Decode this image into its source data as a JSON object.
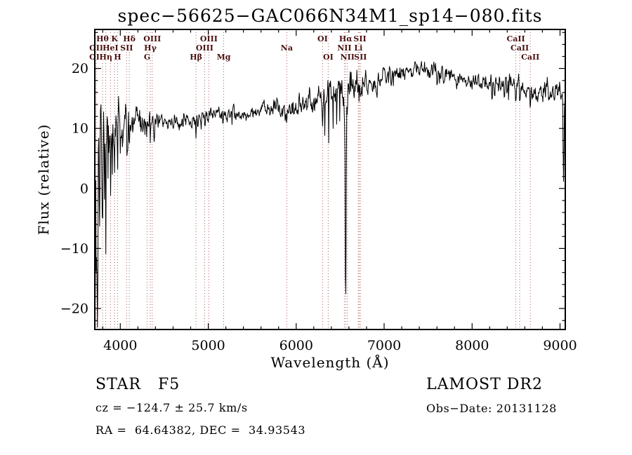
{
  "window": {
    "background": "#ffffff"
  },
  "chart_data": {
    "type": "line",
    "title": "spec−56625−GAC066N34M1_sp14−080.fits",
    "xlabel": "Wavelength (Å)",
    "ylabel": "Flux (relative)",
    "xlim": [
      3710,
      9060
    ],
    "ylim": [
      -23.5,
      26.5
    ],
    "xticks": [
      4000,
      5000,
      6000,
      7000,
      8000,
      9000
    ],
    "x_minor_step": 200,
    "yticks": [
      -20,
      -10,
      0,
      10,
      20
    ],
    "y_minor_step": 2,
    "grid": false,
    "legend": null,
    "colors": {
      "spectrum": "#000000",
      "axis": "#000000",
      "line_marker": "#8b1a1a",
      "line_label": "#4a0f0f"
    },
    "sample_step_angstrom": 5,
    "noise_seed": 20131128,
    "continuum": [
      [
        3710,
        0
      ],
      [
        3750,
        4
      ],
      [
        3790,
        7
      ],
      [
        3830,
        9
      ],
      [
        3870,
        10
      ],
      [
        3920,
        10.6
      ],
      [
        3980,
        11
      ],
      [
        4060,
        11.5
      ],
      [
        4160,
        11.9
      ],
      [
        4300,
        11.6
      ],
      [
        4450,
        11.2
      ],
      [
        4600,
        11.1
      ],
      [
        4750,
        11.3
      ],
      [
        4900,
        11.7
      ],
      [
        5050,
        12.1
      ],
      [
        5200,
        12.3
      ],
      [
        5350,
        12.4
      ],
      [
        5500,
        12.7
      ],
      [
        5620,
        13.3
      ],
      [
        5750,
        13.6
      ],
      [
        5870,
        12.7
      ],
      [
        5950,
        13.0
      ],
      [
        6060,
        13.6
      ],
      [
        6170,
        14.5
      ],
      [
        6280,
        15.3
      ],
      [
        6400,
        15.9
      ],
      [
        6520,
        16.5
      ],
      [
        6640,
        16.9
      ],
      [
        6780,
        17.3
      ],
      [
        6920,
        17.9
      ],
      [
        7060,
        18.8
      ],
      [
        7200,
        19.4
      ],
      [
        7350,
        19.7
      ],
      [
        7500,
        19.5
      ],
      [
        7650,
        19.0
      ],
      [
        7800,
        18.5
      ],
      [
        7950,
        18.1
      ],
      [
        8100,
        17.7
      ],
      [
        8250,
        17.3
      ],
      [
        8400,
        17.0
      ],
      [
        8550,
        16.6
      ],
      [
        8700,
        16.3
      ],
      [
        8850,
        16.3
      ],
      [
        9000,
        16.3
      ],
      [
        9060,
        15.5
      ]
    ],
    "noise_segments": [
      [
        3710,
        3800,
        6.5
      ],
      [
        3800,
        3880,
        4.5
      ],
      [
        3880,
        3980,
        2.8
      ],
      [
        3980,
        4150,
        1.8
      ],
      [
        4150,
        4450,
        1.2
      ],
      [
        4450,
        5750,
        0.62
      ],
      [
        5750,
        6280,
        0.95
      ],
      [
        6280,
        6780,
        1.3
      ],
      [
        6780,
        7150,
        1.05
      ],
      [
        7150,
        8350,
        0.8
      ],
      [
        8350,
        9061,
        0.95
      ]
    ],
    "absorption_features": [
      [
        3714,
        18,
        8
      ],
      [
        3727,
        10,
        6
      ],
      [
        3740,
        20,
        8
      ],
      [
        3762,
        14,
        7
      ],
      [
        3798,
        16,
        8
      ],
      [
        3820,
        10,
        6
      ],
      [
        3835,
        14,
        7
      ],
      [
        3860,
        8,
        6
      ],
      [
        3889,
        11,
        7
      ],
      [
        3910,
        6,
        5
      ],
      [
        3934,
        7.5,
        7
      ],
      [
        3969,
        6.5,
        7
      ],
      [
        4000,
        4,
        5
      ],
      [
        4026,
        3,
        5
      ],
      [
        4077,
        5,
        6
      ],
      [
        4102,
        5.5,
        7
      ],
      [
        4144,
        3,
        5
      ],
      [
        4226,
        2.5,
        5
      ],
      [
        4300,
        2,
        7
      ],
      [
        4341,
        3.5,
        7
      ],
      [
        4383,
        2.5,
        5
      ],
      [
        4430,
        2.5,
        5
      ],
      [
        4861,
        2.8,
        7
      ],
      [
        4920,
        2,
        5
      ],
      [
        5167,
        1.6,
        7
      ],
      [
        5270,
        1.2,
        5
      ],
      [
        5893,
        3.4,
        12
      ],
      [
        6122,
        1.5,
        5
      ],
      [
        6300,
        2,
        5
      ],
      [
        6325,
        6,
        5
      ],
      [
        6371,
        9,
        5
      ],
      [
        6420,
        5,
        4
      ],
      [
        6462,
        8,
        4
      ],
      [
        6495,
        6,
        4
      ],
      [
        6548,
        4,
        5
      ],
      [
        6563,
        36,
        12
      ],
      [
        6583,
        4.5,
        5
      ],
      [
        6707,
        2,
        4
      ],
      [
        6716,
        3,
        4
      ],
      [
        6731,
        3,
        4
      ],
      [
        6867,
        3,
        9
      ],
      [
        7186,
        1.8,
        8
      ],
      [
        7605,
        2.2,
        10
      ],
      [
        8227,
        2,
        5
      ],
      [
        8498,
        3.2,
        7
      ],
      [
        8542,
        3.8,
        7
      ],
      [
        8662,
        3.2,
        7
      ],
      [
        8805,
        2,
        5
      ],
      [
        9040,
        16,
        12
      ]
    ],
    "emission_features": [
      [
        4471,
        1.5,
        3
      ],
      [
        6690,
        3.2,
        4
      ],
      [
        7460,
        1.8,
        3
      ],
      [
        8408,
        6.5,
        4
      ]
    ],
    "spectral_line_markers": [
      3727,
      3798,
      3835,
      3889,
      3934,
      3969,
      4072,
      4102,
      4306,
      4341,
      4363,
      4861,
      4959,
      5007,
      5175,
      5893,
      6300,
      6364,
      6548,
      6563,
      6583,
      6707,
      6716,
      6731,
      8498,
      8542,
      8662
    ],
    "line_label_rows": [
      [
        {
          "text": "Hθ",
          "wl": 3798
        },
        {
          "text": "K",
          "wl": 3934
        },
        {
          "text": "Hδ",
          "wl": 4102
        },
        {
          "text": "OIII",
          "wl": 4363
        },
        {
          "text": "OIII",
          "wl": 5007
        },
        {
          "text": "OI",
          "wl": 6300
        },
        {
          "text": "Hα",
          "wl": 6563
        },
        {
          "text": "SII",
          "wl": 6724
        },
        {
          "text": "CaII",
          "wl": 8498
        }
      ],
      [
        {
          "text": "OII",
          "wl": 3727
        },
        {
          "text": "HeI",
          "wl": 3889
        },
        {
          "text": "SII",
          "wl": 4072
        },
        {
          "text": "Hγ",
          "wl": 4341
        },
        {
          "text": "OIII",
          "wl": 4959
        },
        {
          "text": "Na",
          "wl": 5893
        },
        {
          "text": "NII",
          "wl": 6548
        },
        {
          "text": "Li",
          "wl": 6707
        },
        {
          "text": "CaII",
          "wl": 8542
        }
      ],
      [
        {
          "text": "OII",
          "wl": 3727
        },
        {
          "text": "Hη",
          "wl": 3835
        },
        {
          "text": "H",
          "wl": 3969
        },
        {
          "text": "G",
          "wl": 4306
        },
        {
          "text": "Hβ",
          "wl": 4861
        },
        {
          "text": "Mg",
          "wl": 5175
        },
        {
          "text": "OI",
          "wl": 6364
        },
        {
          "text": "NII",
          "wl": 6583
        },
        {
          "text": "SII",
          "wl": 6731
        },
        {
          "text": "CaII",
          "wl": 8662
        }
      ]
    ]
  },
  "footer": {
    "class_label": "STAR   F5",
    "survey": "LAMOST DR2",
    "cz": "cz = −124.7 ± 25.7 km/s",
    "obs_date": "Obs−Date: 20131128",
    "ra_dec": "RA =  64.64382, DEC =  34.93543"
  }
}
